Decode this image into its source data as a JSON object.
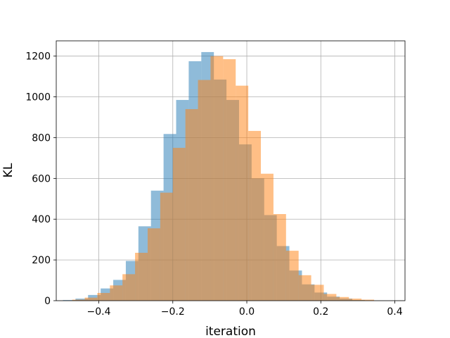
{
  "chart_data": {
    "type": "bar",
    "subtype": "overlapping-histogram",
    "xlabel": "iteration",
    "ylabel": "KL",
    "xlim": [
      -0.515,
      0.4275
    ],
    "ylim": [
      0,
      1275
    ],
    "grid": true,
    "x_ticks": [
      -0.4,
      -0.2,
      0.0,
      0.2,
      0.4
    ],
    "x_tick_labels": [
      "−0.4",
      "−0.2",
      "0.0",
      "0.2",
      "0.4"
    ],
    "y_ticks": [
      0,
      200,
      400,
      600,
      800,
      1000,
      1200
    ],
    "y_tick_labels": [
      "0",
      "200",
      "400",
      "600",
      "800",
      "1000",
      "1200"
    ],
    "series": [
      {
        "color": "#1f77b4",
        "alpha": 0.5,
        "bins": [
          [
            -0.497,
            -0.463,
            3
          ],
          [
            -0.463,
            -0.429,
            10
          ],
          [
            -0.429,
            -0.395,
            28
          ],
          [
            -0.395,
            -0.361,
            60
          ],
          [
            -0.361,
            -0.327,
            102
          ],
          [
            -0.327,
            -0.293,
            195
          ],
          [
            -0.293,
            -0.259,
            365
          ],
          [
            -0.259,
            -0.225,
            540
          ],
          [
            -0.225,
            -0.191,
            818
          ],
          [
            -0.191,
            -0.157,
            985
          ],
          [
            -0.157,
            -0.123,
            1175
          ],
          [
            -0.123,
            -0.089,
            1220
          ],
          [
            -0.089,
            -0.055,
            1085
          ],
          [
            -0.055,
            -0.021,
            985
          ],
          [
            -0.021,
            0.013,
            767
          ],
          [
            0.013,
            0.047,
            600
          ],
          [
            0.047,
            0.081,
            420
          ],
          [
            0.081,
            0.115,
            268
          ],
          [
            0.115,
            0.149,
            148
          ],
          [
            0.149,
            0.183,
            80
          ],
          [
            0.183,
            0.217,
            40
          ],
          [
            0.217,
            0.251,
            20
          ],
          [
            0.251,
            0.285,
            10
          ],
          [
            0.285,
            0.319,
            3
          ]
        ]
      },
      {
        "color": "#ff7f0e",
        "alpha": 0.5,
        "bins": [
          [
            -0.472,
            -0.438,
            5
          ],
          [
            -0.438,
            -0.404,
            15
          ],
          [
            -0.404,
            -0.37,
            38
          ],
          [
            -0.37,
            -0.336,
            75
          ],
          [
            -0.336,
            -0.302,
            130
          ],
          [
            -0.302,
            -0.268,
            235
          ],
          [
            -0.268,
            -0.234,
            355
          ],
          [
            -0.234,
            -0.2,
            530
          ],
          [
            -0.2,
            -0.166,
            750
          ],
          [
            -0.166,
            -0.132,
            940
          ],
          [
            -0.132,
            -0.098,
            1083
          ],
          [
            -0.098,
            -0.064,
            1200
          ],
          [
            -0.064,
            -0.03,
            1185
          ],
          [
            -0.03,
            0.004,
            1055
          ],
          [
            0.004,
            0.038,
            833
          ],
          [
            0.038,
            0.072,
            623
          ],
          [
            0.072,
            0.106,
            425
          ],
          [
            0.106,
            0.14,
            245
          ],
          [
            0.14,
            0.174,
            125
          ],
          [
            0.174,
            0.208,
            78
          ],
          [
            0.208,
            0.242,
            33
          ],
          [
            0.242,
            0.276,
            18
          ],
          [
            0.276,
            0.31,
            10
          ],
          [
            0.31,
            0.344,
            5
          ]
        ]
      }
    ]
  }
}
